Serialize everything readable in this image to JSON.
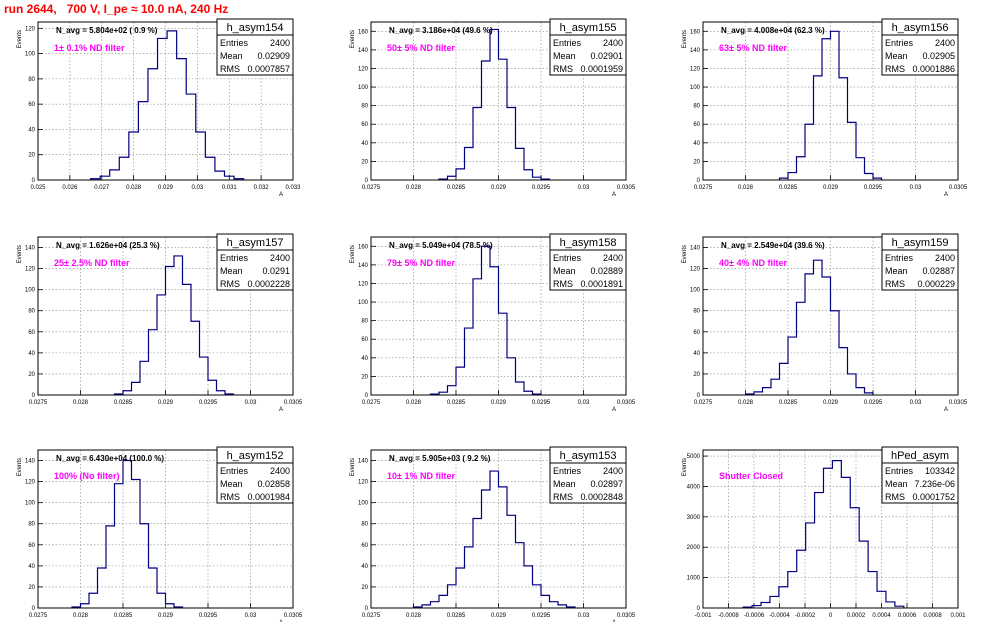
{
  "page_title": "run 2644,   700 V, I_pe ≈ 10.0 nA, 240 Hz",
  "colors": {
    "hist": "#000080",
    "label": "#ff00ff",
    "title": "#ff0000",
    "frame": "#000000"
  },
  "stat_labels": {
    "entries": "Entries",
    "mean": "Mean",
    "rms": "RMS"
  },
  "chart_data": [
    {
      "type": "histogram",
      "name": "h_asym154",
      "navg": "N_avg = 5.804e+02 ( 0.9 %)",
      "label": "1± 0.1% ND filter",
      "entries": "2400",
      "mean": "0.02909",
      "rms": "0.0007857",
      "ylabel": "Events",
      "xlabel": "A",
      "xlim": [
        0.025,
        0.033
      ],
      "ylim": [
        0,
        125
      ],
      "yticks": [
        0,
        20,
        40,
        60,
        80,
        100,
        120
      ],
      "xticks": [
        "0.025",
        "0.026",
        "0.027",
        "0.028",
        "0.029",
        "0.03",
        "0.031",
        "0.032",
        "0.033"
      ],
      "x": [
        0.0268,
        0.0271,
        0.0274,
        0.0277,
        0.028,
        0.0283,
        0.0286,
        0.0289,
        0.0292,
        0.0295,
        0.0298,
        0.0301,
        0.0304,
        0.0307,
        0.031,
        0.0313
      ],
      "y": [
        1,
        3,
        8,
        18,
        38,
        62,
        88,
        112,
        118,
        96,
        68,
        38,
        18,
        7,
        3,
        1
      ],
      "binw": 0.0003
    },
    {
      "type": "histogram",
      "name": "h_asym155",
      "navg": "N_avg = 3.186e+04 (49.6 %)",
      "label": "50± 5% ND filter",
      "entries": "2400",
      "mean": "0.02901",
      "rms": "0.0001959",
      "ylabel": "Events",
      "xlabel": "A",
      "xlim": [
        0.0275,
        0.0305
      ],
      "ylim": [
        0,
        170
      ],
      "yticks": [
        0,
        20,
        40,
        60,
        80,
        100,
        120,
        140,
        160
      ],
      "xticks": [
        "0.0275",
        "0.028",
        "0.0285",
        "0.029",
        "0.0295",
        "0.03",
        "0.0305"
      ],
      "x": [
        0.02835,
        0.02845,
        0.02855,
        0.02865,
        0.02875,
        0.02885,
        0.02895,
        0.02905,
        0.02915,
        0.02925,
        0.02935,
        0.02945,
        0.02955
      ],
      "y": [
        1,
        4,
        12,
        35,
        78,
        128,
        162,
        130,
        78,
        34,
        11,
        3,
        1
      ],
      "binw": 0.0001
    },
    {
      "type": "histogram",
      "name": "h_asym156",
      "navg": "N_avg = 4.008e+04 (62.3 %)",
      "label": "63± 5% ND filter",
      "entries": "2400",
      "mean": "0.02905",
      "rms": "0.0001886",
      "ylabel": "Events",
      "xlabel": "A",
      "xlim": [
        0.0275,
        0.0305
      ],
      "ylim": [
        0,
        170
      ],
      "yticks": [
        0,
        20,
        40,
        60,
        80,
        100,
        120,
        140,
        160
      ],
      "xticks": [
        "0.0275",
        "0.028",
        "0.0285",
        "0.029",
        "0.0295",
        "0.03",
        "0.0305"
      ],
      "x": [
        0.02845,
        0.02855,
        0.02865,
        0.02875,
        0.02885,
        0.02895,
        0.02905,
        0.02915,
        0.02925,
        0.02935,
        0.02945,
        0.02955
      ],
      "y": [
        2,
        8,
        25,
        60,
        112,
        152,
        160,
        110,
        62,
        24,
        7,
        2
      ],
      "binw": 0.0001
    },
    {
      "type": "histogram",
      "name": "h_asym157",
      "navg": "N_avg = 1.626e+04 (25.3 %)",
      "label": "25± 2.5% ND filter",
      "entries": "2400",
      "mean": "0.0291",
      "rms": "0.0002228",
      "ylabel": "Events",
      "xlabel": "A",
      "xlim": [
        0.0275,
        0.0305
      ],
      "ylim": [
        0,
        150
      ],
      "yticks": [
        0,
        20,
        40,
        60,
        80,
        100,
        120,
        140
      ],
      "xticks": [
        "0.0275",
        "0.028",
        "0.0285",
        "0.029",
        "0.0295",
        "0.03",
        "0.0305"
      ],
      "x": [
        0.02845,
        0.02855,
        0.02865,
        0.02875,
        0.02885,
        0.02895,
        0.02905,
        0.02915,
        0.02925,
        0.02935,
        0.02945,
        0.02955,
        0.02965,
        0.02975
      ],
      "y": [
        1,
        4,
        12,
        32,
        62,
        95,
        122,
        132,
        105,
        70,
        36,
        14,
        4,
        1
      ],
      "binw": 0.0001
    },
    {
      "type": "histogram",
      "name": "h_asym158",
      "navg": "N_avg = 5.049e+04 (78.5 %)",
      "label": "79± 5% ND filter",
      "entries": "2400",
      "mean": "0.02889",
      "rms": "0.0001891",
      "ylabel": "Events",
      "xlabel": "A",
      "xlim": [
        0.0275,
        0.0305
      ],
      "ylim": [
        0,
        170
      ],
      "yticks": [
        0,
        20,
        40,
        60,
        80,
        100,
        120,
        140,
        160
      ],
      "xticks": [
        "0.0275",
        "0.028",
        "0.0285",
        "0.029",
        "0.0295",
        "0.03",
        "0.0305"
      ],
      "x": [
        0.02825,
        0.02835,
        0.02845,
        0.02855,
        0.02865,
        0.02875,
        0.02885,
        0.02895,
        0.02905,
        0.02915,
        0.02925,
        0.02935,
        0.02945
      ],
      "y": [
        1,
        3,
        10,
        30,
        72,
        125,
        160,
        138,
        88,
        40,
        14,
        4,
        1
      ],
      "binw": 0.0001
    },
    {
      "type": "histogram",
      "name": "h_asym159",
      "navg": "N_avg = 2.549e+04 (39.6 %)",
      "label": "40± 4% ND filter",
      "entries": "2400",
      "mean": "0.02887",
      "rms": "0.000229",
      "ylabel": "Events",
      "xlabel": "A",
      "xlim": [
        0.0275,
        0.0305
      ],
      "ylim": [
        0,
        150
      ],
      "yticks": [
        0,
        20,
        40,
        60,
        80,
        100,
        120,
        140
      ],
      "xticks": [
        "0.0275",
        "0.028",
        "0.0285",
        "0.029",
        "0.0295",
        "0.03",
        "0.0305"
      ],
      "x": [
        0.02805,
        0.02815,
        0.02825,
        0.02835,
        0.02845,
        0.02855,
        0.02865,
        0.02875,
        0.02885,
        0.02895,
        0.02905,
        0.02915,
        0.02925,
        0.02935,
        0.02945
      ],
      "y": [
        1,
        3,
        7,
        15,
        30,
        55,
        88,
        115,
        128,
        112,
        80,
        45,
        20,
        7,
        2
      ],
      "binw": 0.0001
    },
    {
      "type": "histogram",
      "name": "h_asym152",
      "navg": "N_avg = 6.430e+04 (100.0 %)",
      "label": "100% (No filter)",
      "entries": "2400",
      "mean": "0.02858",
      "rms": "0.0001984",
      "ylabel": "Events",
      "xlabel": "A",
      "xlim": [
        0.0275,
        0.0305
      ],
      "ylim": [
        0,
        150
      ],
      "yticks": [
        0,
        20,
        40,
        60,
        80,
        100,
        120,
        140
      ],
      "xticks": [
        "0.0275",
        "0.028",
        "0.0285",
        "0.029",
        "0.0295",
        "0.03",
        "0.0305"
      ],
      "x": [
        0.02795,
        0.02805,
        0.02815,
        0.02825,
        0.02835,
        0.02845,
        0.02855,
        0.02865,
        0.02875,
        0.02885,
        0.02895,
        0.02905,
        0.02915
      ],
      "y": [
        1,
        4,
        14,
        38,
        78,
        118,
        140,
        122,
        80,
        38,
        14,
        4,
        1
      ],
      "binw": 0.0001
    },
    {
      "type": "histogram",
      "name": "h_asym153",
      "navg": "N_avg = 5.905e+03 ( 9.2 %)",
      "label": "10± 1% ND filter",
      "entries": "2400",
      "mean": "0.02897",
      "rms": "0.0002848",
      "ylabel": "Events",
      "xlabel": "A",
      "xlim": [
        0.0275,
        0.0305
      ],
      "ylim": [
        0,
        150
      ],
      "yticks": [
        0,
        20,
        40,
        60,
        80,
        100,
        120,
        140
      ],
      "xticks": [
        "0.0275",
        "0.028",
        "0.0285",
        "0.029",
        "0.0295",
        "0.03",
        "0.0305"
      ],
      "x": [
        0.02805,
        0.02815,
        0.02825,
        0.02835,
        0.02845,
        0.02855,
        0.02865,
        0.02875,
        0.02885,
        0.02895,
        0.02905,
        0.02915,
        0.02925,
        0.02935,
        0.02945,
        0.02955,
        0.02965,
        0.02975,
        0.02985
      ],
      "y": [
        1,
        3,
        6,
        12,
        22,
        38,
        58,
        85,
        112,
        130,
        115,
        88,
        62,
        40,
        22,
        12,
        6,
        3,
        1
      ],
      "binw": 0.0001
    },
    {
      "type": "histogram",
      "name": "hPed_asym",
      "navg": "",
      "label": "Shutter Closed",
      "entries": "103342",
      "mean": "7.236e-06",
      "rms": "0.0001752",
      "ylabel": "Events",
      "xlabel": "",
      "xlim": [
        -0.001,
        0.001
      ],
      "ylim": [
        0,
        5200
      ],
      "yticks": [
        0,
        1000,
        2000,
        3000,
        4000,
        5000
      ],
      "xticks": [
        "-0.001",
        "-0.0008",
        "-0.0006",
        "-0.0004",
        "-0.0002",
        "0",
        "0.0002",
        "0.0004",
        "0.0006",
        "0.0008",
        "0.001"
      ],
      "x": [
        -0.00065,
        -0.00058,
        -0.00051,
        -0.00044,
        -0.00037,
        -0.0003,
        -0.00023,
        -0.00016,
        -9e-05,
        -2e-05,
        5e-05,
        0.00012,
        0.00019,
        0.00026,
        0.00033,
        0.0004,
        0.00047,
        0.00054
      ],
      "y": [
        30,
        80,
        180,
        380,
        700,
        1200,
        1900,
        2800,
        3800,
        4600,
        4850,
        4300,
        3300,
        2200,
        1200,
        550,
        200,
        60
      ],
      "binw": 7e-05
    }
  ]
}
